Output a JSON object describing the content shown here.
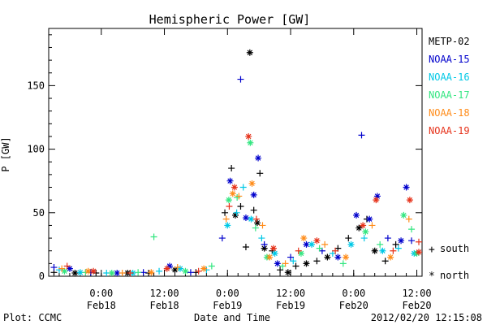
{
  "chart_data": {
    "type": "scatter",
    "title": "Hemispheric Power [GW]",
    "xlabel": "Date and Time",
    "ylabel": "P [GW]",
    "xlim": [
      "2012-02-17 14:00",
      "2012-02-20 13:00"
    ],
    "ylim": [
      0,
      195
    ],
    "yticks": [
      0,
      50,
      100,
      150
    ],
    "xticks": [
      {
        "x": "2012-02-18 00:00",
        "time": "0:00",
        "date": "Feb18"
      },
      {
        "x": "2012-02-18 12:00",
        "time": "12:00",
        "date": "Feb18"
      },
      {
        "x": "2012-02-19 00:00",
        "time": "0:00",
        "date": "Feb19"
      },
      {
        "x": "2012-02-19 12:00",
        "time": "12:00",
        "date": "Feb19"
      },
      {
        "x": "2012-02-20 00:00",
        "time": "0:00",
        "date": "Feb20"
      },
      {
        "x": "2012-02-20 12:00",
        "time": "12:00",
        "date": "Feb20"
      }
    ],
    "grid": false,
    "legend_position": "right",
    "marker_legend": {
      "plus": "south",
      "star": "north"
    },
    "series": [
      {
        "name": "METP-02",
        "color": "#000000",
        "points": [
          [
            "2012-02-17 15:00",
            3,
            "plus"
          ],
          [
            "2012-02-17 19:00",
            2,
            "star"
          ],
          [
            "2012-02-17 23:00",
            1,
            "plus"
          ],
          [
            "2012-02-18 05:00",
            1,
            "star"
          ],
          [
            "2012-02-18 09:00",
            2,
            "plus"
          ],
          [
            "2012-02-18 14:00",
            5,
            "star"
          ],
          [
            "2012-02-18 18:00",
            3,
            "plus"
          ],
          [
            "2012-02-18 23:30",
            50,
            "plus"
          ],
          [
            "2012-02-19 00:45",
            85,
            "plus"
          ],
          [
            "2012-02-19 01:30",
            48,
            "star"
          ],
          [
            "2012-02-19 02:30",
            55,
            "plus"
          ],
          [
            "2012-02-19 03:30",
            23,
            "plus"
          ],
          [
            "2012-02-19 04:15",
            176,
            "star"
          ],
          [
            "2012-02-19 05:00",
            52,
            "plus"
          ],
          [
            "2012-02-19 05:40",
            42,
            "star"
          ],
          [
            "2012-02-19 06:10",
            81,
            "plus"
          ],
          [
            "2012-02-19 07:00",
            22,
            "star"
          ],
          [
            "2012-02-19 08:30",
            20,
            "plus"
          ],
          [
            "2012-02-19 10:00",
            5,
            "plus"
          ],
          [
            "2012-02-19 11:30",
            3,
            "star"
          ],
          [
            "2012-02-19 13:00",
            8,
            "plus"
          ],
          [
            "2012-02-19 15:00",
            10,
            "star"
          ],
          [
            "2012-02-19 17:00",
            12,
            "plus"
          ],
          [
            "2012-02-19 19:00",
            15,
            "star"
          ],
          [
            "2012-02-19 21:00",
            22,
            "plus"
          ],
          [
            "2012-02-19 23:00",
            30,
            "plus"
          ],
          [
            "2012-02-20 01:00",
            38,
            "star"
          ],
          [
            "2012-02-20 02:30",
            45,
            "plus"
          ],
          [
            "2012-02-20 04:00",
            20,
            "star"
          ],
          [
            "2012-02-20 06:00",
            12,
            "plus"
          ],
          [
            "2012-02-20 08:00",
            25,
            "plus"
          ]
        ]
      },
      {
        "name": "NOAA-15",
        "color": "#0000cc",
        "points": [
          [
            "2012-02-17 15:00",
            7,
            "plus"
          ],
          [
            "2012-02-17 18:00",
            6,
            "star"
          ],
          [
            "2012-02-17 22:00",
            3,
            "plus"
          ],
          [
            "2012-02-18 03:00",
            2,
            "star"
          ],
          [
            "2012-02-18 08:00",
            3,
            "plus"
          ],
          [
            "2012-02-18 13:00",
            8,
            "star"
          ],
          [
            "2012-02-18 17:00",
            3,
            "plus"
          ],
          [
            "2012-02-18 23:00",
            30,
            "plus"
          ],
          [
            "2012-02-19 00:30",
            75,
            "star"
          ],
          [
            "2012-02-19 02:30",
            155,
            "plus"
          ],
          [
            "2012-02-19 03:30",
            46,
            "star"
          ],
          [
            "2012-02-19 05:00",
            64,
            "star"
          ],
          [
            "2012-02-19 05:50",
            93,
            "star"
          ],
          [
            "2012-02-19 07:00",
            25,
            "plus"
          ],
          [
            "2012-02-19 09:30",
            10,
            "star"
          ],
          [
            "2012-02-19 12:00",
            15,
            "plus"
          ],
          [
            "2012-02-19 15:00",
            25,
            "star"
          ],
          [
            "2012-02-19 18:00",
            20,
            "plus"
          ],
          [
            "2012-02-19 21:00",
            15,
            "star"
          ],
          [
            "2012-02-20 00:30",
            48,
            "star"
          ],
          [
            "2012-02-20 01:30",
            111,
            "plus"
          ],
          [
            "2012-02-20 03:00",
            45,
            "star"
          ],
          [
            "2012-02-20 04:30",
            63,
            "star"
          ],
          [
            "2012-02-20 06:30",
            30,
            "plus"
          ],
          [
            "2012-02-20 09:00",
            28,
            "star"
          ],
          [
            "2012-02-20 10:00",
            70,
            "star"
          ],
          [
            "2012-02-20 11:00",
            28,
            "plus"
          ]
        ]
      },
      {
        "name": "NOAA-16",
        "color": "#00c8e6",
        "points": [
          [
            "2012-02-17 16:00",
            5,
            "plus"
          ],
          [
            "2012-02-17 20:00",
            3,
            "star"
          ],
          [
            "2012-02-18 01:00",
            2,
            "plus"
          ],
          [
            "2012-02-18 06:00",
            2,
            "star"
          ],
          [
            "2012-02-18 11:00",
            4,
            "plus"
          ],
          [
            "2012-02-18 15:00",
            6,
            "star"
          ],
          [
            "2012-02-18 20:00",
            5,
            "plus"
          ],
          [
            "2012-02-19 00:00",
            40,
            "star"
          ],
          [
            "2012-02-19 01:45",
            50,
            "plus"
          ],
          [
            "2012-02-19 03:00",
            70,
            "plus"
          ],
          [
            "2012-02-19 04:30",
            45,
            "star"
          ],
          [
            "2012-02-19 06:30",
            30,
            "plus"
          ],
          [
            "2012-02-19 09:00",
            18,
            "star"
          ],
          [
            "2012-02-19 12:30",
            12,
            "plus"
          ],
          [
            "2012-02-19 16:00",
            25,
            "star"
          ],
          [
            "2012-02-19 20:00",
            18,
            "plus"
          ],
          [
            "2012-02-19 23:30",
            25,
            "star"
          ],
          [
            "2012-02-20 02:00",
            30,
            "plus"
          ],
          [
            "2012-02-20 05:30",
            20,
            "star"
          ],
          [
            "2012-02-20 08:30",
            22,
            "plus"
          ],
          [
            "2012-02-20 11:30",
            18,
            "star"
          ]
        ]
      },
      {
        "name": "NOAA-17",
        "color": "#33e680",
        "points": [
          [
            "2012-02-17 17:00",
            4,
            "star"
          ],
          [
            "2012-02-17 21:00",
            3,
            "plus"
          ],
          [
            "2012-02-18 02:00",
            2,
            "star"
          ],
          [
            "2012-02-18 07:00",
            3,
            "plus"
          ],
          [
            "2012-02-18 10:00",
            31,
            "plus"
          ],
          [
            "2012-02-18 16:00",
            4,
            "star"
          ],
          [
            "2012-02-18 21:00",
            8,
            "plus"
          ],
          [
            "2012-02-19 00:15",
            60,
            "star"
          ],
          [
            "2012-02-19 01:50",
            62,
            "plus"
          ],
          [
            "2012-02-19 04:20",
            105,
            "star"
          ],
          [
            "2012-02-19 05:20",
            38,
            "plus"
          ],
          [
            "2012-02-19 07:30",
            15,
            "star"
          ],
          [
            "2012-02-19 10:30",
            8,
            "plus"
          ],
          [
            "2012-02-19 14:00",
            18,
            "star"
          ],
          [
            "2012-02-19 17:30",
            22,
            "plus"
          ],
          [
            "2012-02-19 22:00",
            10,
            "plus"
          ],
          [
            "2012-02-20 02:15",
            35,
            "star"
          ],
          [
            "2012-02-20 05:00",
            25,
            "plus"
          ],
          [
            "2012-02-20 09:30",
            48,
            "star"
          ],
          [
            "2012-02-20 11:00",
            37,
            "plus"
          ],
          [
            "2012-02-20 12:00",
            18,
            "star"
          ]
        ]
      },
      {
        "name": "NOAA-18",
        "color": "#ff8c1a",
        "points": [
          [
            "2012-02-17 16:30",
            6,
            "plus"
          ],
          [
            "2012-02-17 21:30",
            4,
            "star"
          ],
          [
            "2012-02-18 04:00",
            2,
            "plus"
          ],
          [
            "2012-02-18 09:30",
            3,
            "star"
          ],
          [
            "2012-02-18 14:30",
            7,
            "plus"
          ],
          [
            "2012-02-18 19:30",
            6,
            "star"
          ],
          [
            "2012-02-18 23:45",
            45,
            "plus"
          ],
          [
            "2012-02-19 01:00",
            65,
            "star"
          ],
          [
            "2012-02-19 02:10",
            63,
            "plus"
          ],
          [
            "2012-02-19 04:40",
            73,
            "star"
          ],
          [
            "2012-02-19 06:40",
            40,
            "plus"
          ],
          [
            "2012-02-19 08:00",
            15,
            "star"
          ],
          [
            "2012-02-19 11:00",
            10,
            "plus"
          ],
          [
            "2012-02-19 14:30",
            30,
            "star"
          ],
          [
            "2012-02-19 18:30",
            25,
            "plus"
          ],
          [
            "2012-02-19 22:30",
            15,
            "star"
          ],
          [
            "2012-02-20 03:30",
            40,
            "plus"
          ],
          [
            "2012-02-20 07:00",
            15,
            "star"
          ],
          [
            "2012-02-20 10:30",
            45,
            "plus"
          ]
        ]
      },
      {
        "name": "NOAA-19",
        "color": "#e6321a",
        "points": [
          [
            "2012-02-17 17:30",
            8,
            "plus"
          ],
          [
            "2012-02-17 22:30",
            4,
            "star"
          ],
          [
            "2012-02-18 05:30",
            2,
            "plus"
          ],
          [
            "2012-02-18 12:30",
            6,
            "star"
          ],
          [
            "2012-02-18 18:30",
            4,
            "plus"
          ],
          [
            "2012-02-19 00:20",
            55,
            "plus"
          ],
          [
            "2012-02-19 01:20",
            70,
            "star"
          ],
          [
            "2012-02-19 04:00",
            110,
            "star"
          ],
          [
            "2012-02-19 05:30",
            45,
            "plus"
          ],
          [
            "2012-02-19 08:45",
            22,
            "star"
          ],
          [
            "2012-02-19 13:30",
            20,
            "plus"
          ],
          [
            "2012-02-19 17:00",
            28,
            "star"
          ],
          [
            "2012-02-19 20:30",
            20,
            "plus"
          ],
          [
            "2012-02-20 01:45",
            40,
            "star"
          ],
          [
            "2012-02-20 04:15",
            60,
            "star"
          ],
          [
            "2012-02-20 07:30",
            20,
            "plus"
          ],
          [
            "2012-02-20 10:40",
            60,
            "star"
          ],
          [
            "2012-02-20 12:30",
            27,
            "plus"
          ],
          [
            "2012-02-20 13:00",
            19,
            "star"
          ]
        ]
      }
    ]
  },
  "footer": {
    "plot_credit": "Plot: CCMC",
    "timestamp": "2012/02/20 12:15:08"
  }
}
